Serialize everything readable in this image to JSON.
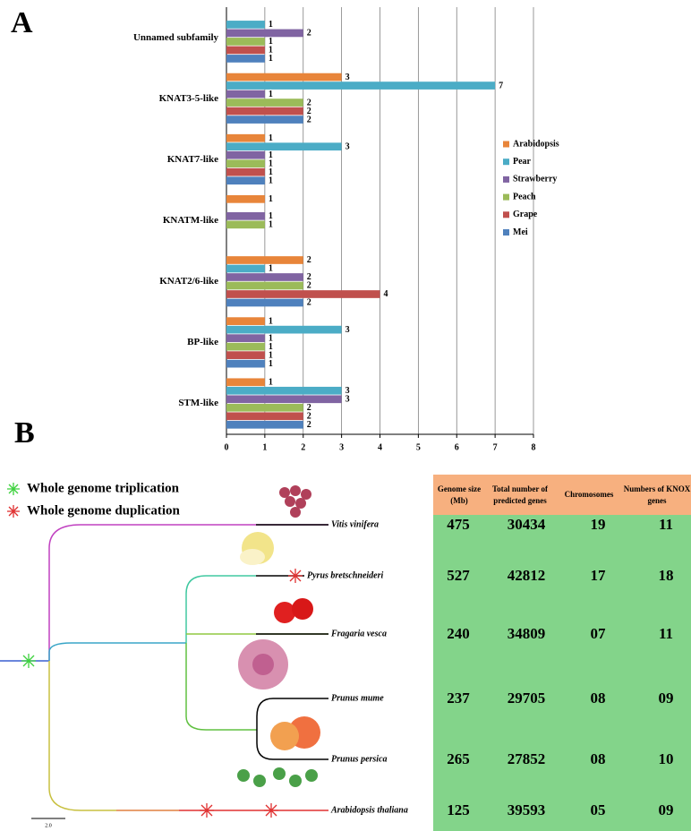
{
  "chart_data": {
    "type": "bar",
    "orientation": "horizontal",
    "categories": [
      "Unnamed subfamily",
      "KNAT3-5-like",
      "KNAT7-like",
      "KNATM-like",
      "KNAT2/6-like",
      "BP-like",
      "STM-like"
    ],
    "series": [
      {
        "name": "Arabidopsis",
        "color": "#e8853a",
        "values": [
          null,
          3,
          1,
          1,
          2,
          1,
          1
        ]
      },
      {
        "name": "Pear",
        "color": "#4bacc6",
        "values": [
          1,
          7,
          3,
          null,
          1,
          3,
          3
        ]
      },
      {
        "name": "Strawberry",
        "color": "#8064a2",
        "values": [
          2,
          1,
          1,
          1,
          2,
          1,
          3
        ]
      },
      {
        "name": "Peach",
        "color": "#9bbb59",
        "values": [
          1,
          2,
          1,
          1,
          2,
          1,
          2
        ]
      },
      {
        "name": "Grape",
        "color": "#c0504d",
        "values": [
          1,
          2,
          1,
          null,
          4,
          1,
          2
        ]
      },
      {
        "name": "Mei",
        "color": "#4f81bd",
        "values": [
          1,
          2,
          1,
          null,
          2,
          1,
          2
        ]
      }
    ],
    "xlim": [
      0,
      8
    ],
    "xticks": [
      0,
      1,
      2,
      3,
      4,
      5,
      6,
      7,
      8
    ],
    "grid": true,
    "legend": "right",
    "data_labels": true
  },
  "panel_labels": {
    "a": "A",
    "b": "B"
  },
  "tree": {
    "legend": [
      "Whole genome triplication",
      "Whole genome duplication"
    ],
    "species": [
      "Vitis vinifera",
      "Pyrus bretschneideri",
      "Fragaria vesca",
      "Prunus mume",
      "Prunus persica",
      "Arabidopsis thaliana"
    ],
    "scale_label": "2.0"
  },
  "table": {
    "columns": [
      "Genome size (Mb)",
      "Total number of predicted genes",
      "Chromosomes",
      "Numbers of KNOX genes"
    ],
    "rows": [
      [
        "475",
        "30434",
        "19",
        "11"
      ],
      [
        "527",
        "42812",
        "17",
        "18"
      ],
      [
        "240",
        "34809",
        "07",
        "11"
      ],
      [
        "237",
        "29705",
        "08",
        "09"
      ],
      [
        "265",
        "27852",
        "08",
        "10"
      ],
      [
        "125",
        "39593",
        "05",
        "09"
      ]
    ]
  }
}
